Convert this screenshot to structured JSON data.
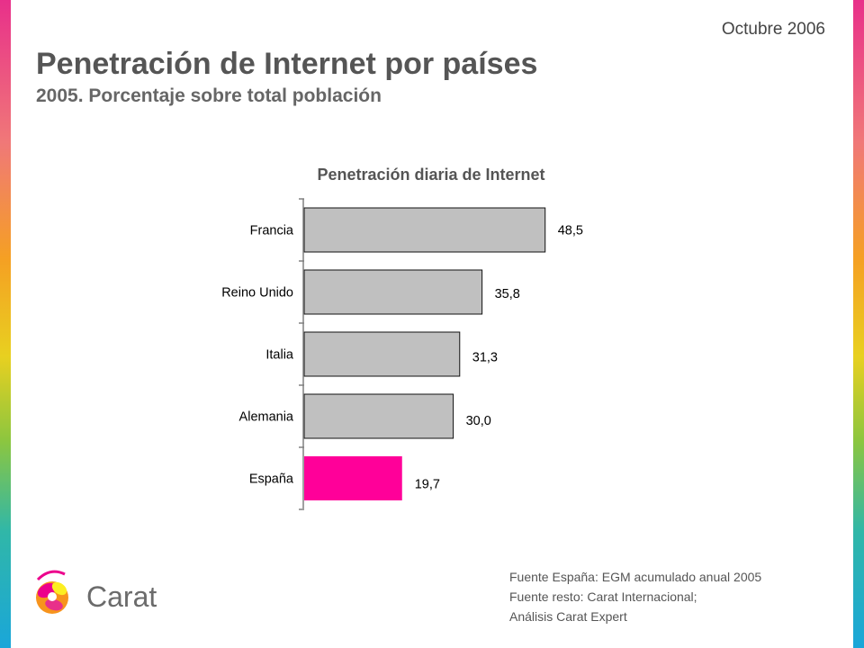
{
  "header": {
    "date": "Octubre 2006",
    "title": "Penetración de Internet por países",
    "subtitle": "2005. Porcentaje sobre total población"
  },
  "chart_data": {
    "type": "bar",
    "orientation": "horizontal",
    "title": "Penetración diaria de Internet",
    "categories": [
      "Francia",
      "Reino Unido",
      "Italia",
      "Alemania",
      "España"
    ],
    "values": [
      48.5,
      35.8,
      31.3,
      30.0,
      19.7
    ],
    "value_labels": [
      "48,5",
      "35,8",
      "31,3",
      "30,0",
      "19,7"
    ],
    "xlim": [
      0,
      60
    ],
    "grid": false,
    "legend": "none",
    "colors": {
      "default_bar": "#c0c0c0",
      "highlight_bar": "#ff0099",
      "highlight_category": "España"
    }
  },
  "sources": {
    "line1": "Fuente España: EGM acumulado anual 2005",
    "line2": "Fuente resto: Carat Internacional;",
    "line3": "Análisis Carat Expert"
  },
  "logo": {
    "text": "Carat"
  }
}
